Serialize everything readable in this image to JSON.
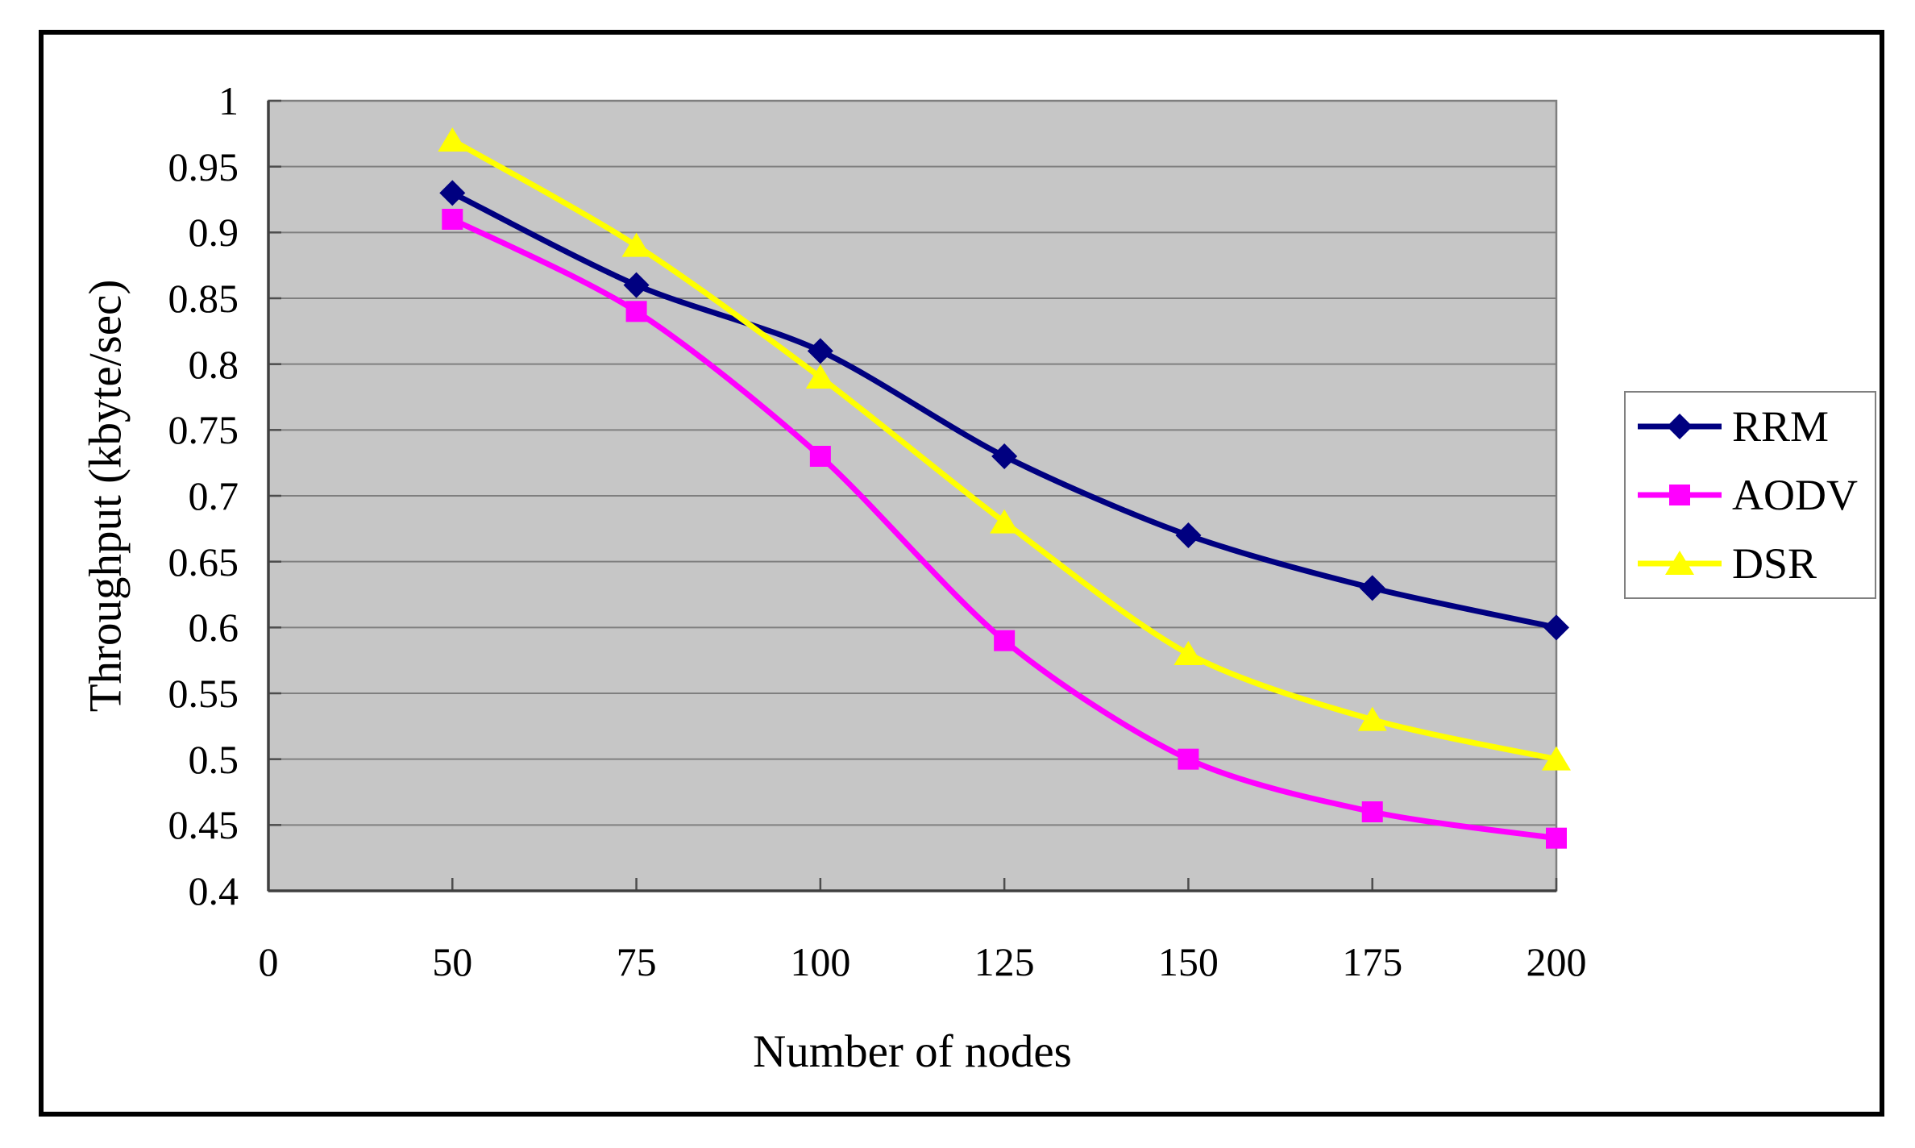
{
  "chart_data": {
    "type": "line",
    "title": "",
    "xlabel": "Number of nodes",
    "ylabel": "Throughput (kbyte/sec)",
    "categories": [
      "0",
      "50",
      "75",
      "100",
      "125",
      "150",
      "175",
      "200"
    ],
    "y_tick_labels": [
      "1",
      "0.95",
      "0.9",
      "0.85",
      "0.8",
      "0.75",
      "0.7",
      "0.65",
      "0.6",
      "0.55",
      "0.5",
      "0.45",
      "0.4"
    ],
    "ylim": [
      0.4,
      1
    ],
    "y_step": 0.05,
    "grid": true,
    "legend_position": "right",
    "series": [
      {
        "name": "RRM",
        "color": "#000080",
        "marker": "diamond",
        "values": [
          null,
          0.93,
          0.86,
          0.81,
          0.73,
          0.67,
          0.63,
          0.6
        ]
      },
      {
        "name": "AODV",
        "color": "#FF00FF",
        "marker": "square",
        "values": [
          null,
          0.91,
          0.84,
          0.73,
          0.59,
          0.5,
          0.46,
          0.44
        ]
      },
      {
        "name": "DSR",
        "color": "#FFFF00",
        "marker": "triangle",
        "values": [
          null,
          0.97,
          0.89,
          0.79,
          0.68,
          0.58,
          0.53,
          0.5
        ]
      }
    ],
    "colors": {
      "plot_background": "#C6C6C6",
      "gridline": "#7F7F7F",
      "plot_border": "#7F7F7F",
      "axis_line": "#404040",
      "tick_mark": "#4D4D4D",
      "figure_border": "#000000",
      "legend_border": "#808080",
      "text": "#000000",
      "page_background": "#FFFFFF"
    }
  }
}
